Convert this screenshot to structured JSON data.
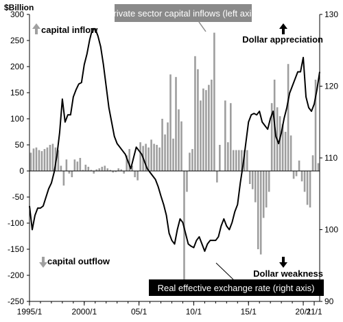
{
  "chart_data": {
    "type": "bar",
    "ylabel_left": "$Billion",
    "y_left_range": [
      -250,
      300
    ],
    "y_left_ticks": [
      300,
      250,
      200,
      150,
      100,
      50,
      0,
      -50,
      -100,
      -150,
      -200,
      -250
    ],
    "y_right_range": [
      90,
      130
    ],
    "y_right_ticks": [
      130,
      120,
      110,
      100,
      90
    ],
    "x_range": [
      1995.0,
      2021.5
    ],
    "x_tick_labels": [
      {
        "x": 1995.0,
        "label": "1995/1"
      },
      {
        "x": 2000.0,
        "label": "2000/1"
      },
      {
        "x": 2005.0,
        "label": "05/1"
      },
      {
        "x": 2010.0,
        "label": "10/1"
      },
      {
        "x": 2015.0,
        "label": "15/1"
      },
      {
        "x": 2020.0,
        "label": "20/1"
      },
      {
        "x": 2021.0,
        "label": "21/1"
      }
    ],
    "annotations": {
      "inflow_callout": "Private sector capital inflows (left axis)",
      "rate_callout": "Real effective exchange rate (right axis)",
      "capital_inflow": "capital inflow",
      "capital_outflow": "capital outflow",
      "dollar_appreciation": "Dollar appreciation",
      "dollar_weakness": "Dollar weakness"
    },
    "colors": {
      "bars": "#9e9e9e",
      "line": "#000000",
      "inflow_callout_bg": "#8a8a8a",
      "rate_callout_bg": "#000000",
      "arrow_gray": "#a0a0a0"
    },
    "series": [
      {
        "name": "Private sector capital inflows (left axis)",
        "axis": "left",
        "kind": "bar",
        "x": [
          1995.0,
          1995.25,
          1995.5,
          1995.75,
          1996.0,
          1996.25,
          1996.5,
          1996.75,
          1997.0,
          1997.25,
          1997.5,
          1997.75,
          1998.0,
          1998.25,
          1998.5,
          1998.75,
          1999.0,
          1999.25,
          1999.5,
          1999.75,
          2000.0,
          2000.25,
          2000.5,
          2000.75,
          2001.0,
          2001.25,
          2001.5,
          2001.75,
          2002.0,
          2002.25,
          2002.5,
          2002.75,
          2003.0,
          2003.25,
          2003.5,
          2003.75,
          2004.0,
          2004.25,
          2004.5,
          2004.75,
          2005.0,
          2005.25,
          2005.5,
          2005.75,
          2006.0,
          2006.25,
          2006.5,
          2006.75,
          2007.0,
          2007.25,
          2007.5,
          2007.75,
          2008.0,
          2008.25,
          2008.5,
          2008.75,
          2009.0,
          2009.25,
          2009.5,
          2009.75,
          2010.0,
          2010.25,
          2010.5,
          2010.75,
          2011.0,
          2011.25,
          2011.5,
          2011.75,
          2012.0,
          2012.25,
          2012.5,
          2012.75,
          2013.0,
          2013.25,
          2013.5,
          2013.75,
          2014.0,
          2014.25,
          2014.5,
          2014.75,
          2015.0,
          2015.25,
          2015.5,
          2015.75,
          2016.0,
          2016.25,
          2016.5,
          2016.75,
          2017.0,
          2017.25,
          2017.5,
          2017.75,
          2018.0,
          2018.25,
          2018.5,
          2018.75,
          2019.0,
          2019.25,
          2019.5,
          2019.75,
          2020.0,
          2020.25,
          2020.5,
          2020.75,
          2021.0,
          2021.25
        ],
        "values": [
          35,
          43,
          45,
          40,
          38,
          42,
          45,
          50,
          52,
          45,
          40,
          10,
          -28,
          22,
          -5,
          -12,
          22,
          18,
          25,
          2,
          12,
          8,
          2,
          -5,
          3,
          5,
          8,
          10,
          5,
          2,
          -3,
          -2,
          5,
          3,
          -5,
          30,
          42,
          10,
          -12,
          -18,
          55,
          48,
          52,
          45,
          60,
          52,
          50,
          45,
          100,
          70,
          93,
          185,
          62,
          180,
          118,
          95,
          -210,
          -40,
          35,
          42,
          220,
          195,
          135,
          158,
          155,
          165,
          175,
          265,
          -22,
          50,
          0,
          135,
          55,
          130,
          40,
          40,
          40,
          40,
          40,
          40,
          -25,
          -35,
          -60,
          -150,
          -160,
          -90,
          -70,
          -40,
          130,
          175,
          122,
          105,
          90,
          75,
          205,
          68,
          -15,
          -10,
          20,
          -20,
          -40,
          -65,
          -70,
          30,
          175,
          15
        ]
      },
      {
        "name": "Real effective exchange rate (right axis)",
        "axis": "right",
        "kind": "line",
        "x": [
          1995.0,
          1995.25,
          1995.5,
          1995.75,
          1996.0,
          1996.25,
          1996.5,
          1996.75,
          1997.0,
          1997.25,
          1997.5,
          1997.75,
          1998.0,
          1998.25,
          1998.5,
          1998.75,
          1999.0,
          1999.25,
          1999.5,
          1999.75,
          2000.0,
          2000.25,
          2000.5,
          2000.75,
          2001.0,
          2001.25,
          2001.5,
          2001.75,
          2002.0,
          2002.25,
          2002.5,
          2002.75,
          2003.0,
          2003.25,
          2003.5,
          2003.75,
          2004.0,
          2004.25,
          2004.5,
          2004.75,
          2005.0,
          2005.25,
          2005.5,
          2005.75,
          2006.0,
          2006.25,
          2006.5,
          2006.75,
          2007.0,
          2007.25,
          2007.5,
          2007.75,
          2008.0,
          2008.25,
          2008.5,
          2008.75,
          2009.0,
          2009.25,
          2009.5,
          2009.75,
          2010.0,
          2010.25,
          2010.5,
          2010.75,
          2011.0,
          2011.25,
          2011.5,
          2011.75,
          2012.0,
          2012.25,
          2012.5,
          2012.75,
          2013.0,
          2013.25,
          2013.5,
          2013.75,
          2014.0,
          2014.25,
          2014.5,
          2014.75,
          2015.0,
          2015.25,
          2015.5,
          2015.75,
          2016.0,
          2016.25,
          2016.5,
          2016.75,
          2017.0,
          2017.25,
          2017.5,
          2017.75,
          2018.0,
          2018.25,
          2018.5,
          2018.75,
          2019.0,
          2019.25,
          2019.5,
          2019.75,
          2020.0,
          2020.25,
          2020.5,
          2020.75,
          2021.0,
          2021.25,
          2021.5
        ],
        "values": [
          103.3,
          100.0,
          102.0,
          103.0,
          103.0,
          103.3,
          104.5,
          105.7,
          106.5,
          108.0,
          110.3,
          113.5,
          118.2,
          115.0,
          116.0,
          116.0,
          118.5,
          119.5,
          120.3,
          120.5,
          123.0,
          124.5,
          126.5,
          128.0,
          128.0,
          127.0,
          125.5,
          123.0,
          120.0,
          117.0,
          115.0,
          113.0,
          112.0,
          111.5,
          111.0,
          110.5,
          109.5,
          108.5,
          110.0,
          111.5,
          111.0,
          110.5,
          109.5,
          108.5,
          108.0,
          107.5,
          107.0,
          106.0,
          104.7,
          103.5,
          102.0,
          99.5,
          98.5,
          98.0,
          100.0,
          101.5,
          101.0,
          99.5,
          98.0,
          97.7,
          97.5,
          98.5,
          99.0,
          98.0,
          97.0,
          98.0,
          98.5,
          98.5,
          98.5,
          99.0,
          100.5,
          101.5,
          100.5,
          100.0,
          101.0,
          102.5,
          103.5,
          106.5,
          109.0,
          112.0,
          115.0,
          116.0,
          116.2,
          116.0,
          116.5,
          115.0,
          114.5,
          114.0,
          115.5,
          116.5,
          113.0,
          112.0,
          113.5,
          115.5,
          117.0,
          119.0,
          120.0,
          121.0,
          122.0,
          122.0,
          124.0,
          118.5,
          117.0,
          116.5,
          117.5,
          119.5,
          122.0
        ]
      }
    ]
  }
}
